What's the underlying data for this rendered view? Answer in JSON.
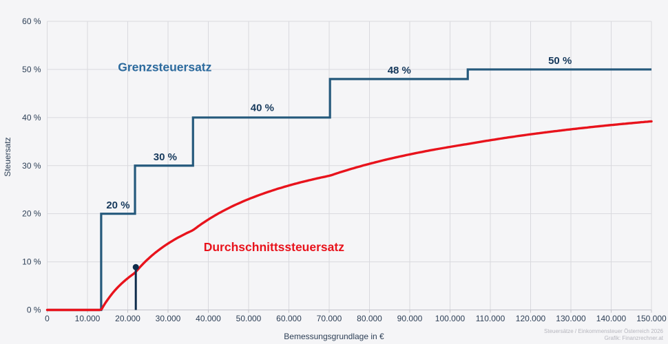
{
  "chart_data": {
    "type": "line",
    "title": "",
    "xlabel": "Bemessungsgrundlage in €",
    "ylabel": "Steuersatz",
    "xlim": [
      0,
      150000
    ],
    "ylim": [
      0,
      60
    ],
    "grid": true,
    "x_ticks": [
      {
        "value": 0,
        "label": "0"
      },
      {
        "value": 10000,
        "label": "10.000"
      },
      {
        "value": 20000,
        "label": "20.000"
      },
      {
        "value": 30000,
        "label": "30.000"
      },
      {
        "value": 40000,
        "label": "40.000"
      },
      {
        "value": 50000,
        "label": "50.000"
      },
      {
        "value": 60000,
        "label": "60.000"
      },
      {
        "value": 70000,
        "label": "70.000"
      },
      {
        "value": 80000,
        "label": "80.000"
      },
      {
        "value": 90000,
        "label": "90.000"
      },
      {
        "value": 100000,
        "label": "100.000"
      },
      {
        "value": 110000,
        "label": "110.000"
      },
      {
        "value": 120000,
        "label": "120.000"
      },
      {
        "value": 130000,
        "label": "130.000"
      },
      {
        "value": 140000,
        "label": "140.000"
      },
      {
        "value": 150000,
        "label": "150.000"
      }
    ],
    "y_ticks": [
      {
        "value": 0,
        "label": "0 %"
      },
      {
        "value": 10,
        "label": "10 %"
      },
      {
        "value": 20,
        "label": "20 %"
      },
      {
        "value": 30,
        "label": "30 %"
      },
      {
        "value": 40,
        "label": "40 %"
      },
      {
        "value": 50,
        "label": "50 %"
      },
      {
        "value": 60,
        "label": "60 %"
      }
    ],
    "series": [
      {
        "name": "Grenzsteuersatz",
        "type": "step",
        "color": "#25597c",
        "brackets": [
          {
            "up_to": 13400,
            "rate": 0
          },
          {
            "up_to": 21800,
            "rate": 20
          },
          {
            "up_to": 36200,
            "rate": 30
          },
          {
            "up_to": 70200,
            "rate": 40
          },
          {
            "up_to": 104400,
            "rate": 48
          },
          {
            "up_to": 150000,
            "rate": 50
          }
        ]
      },
      {
        "name": "Durchschnittssteuersatz",
        "type": "line",
        "color": "#e8131c",
        "derived": "average_rate_from_brackets"
      }
    ],
    "step_labels": [
      {
        "text": "20 %",
        "x": 17600,
        "y": 21.1
      },
      {
        "text": "30 %",
        "x": 29300,
        "y": 31.1
      },
      {
        "text": "40 %",
        "x": 53400,
        "y": 41.3
      },
      {
        "text": "48 %",
        "x": 87400,
        "y": 49.1
      },
      {
        "text": "50 %",
        "x": 127300,
        "y": 51.1
      }
    ],
    "series_labels": [
      {
        "text": "Grenzsteuersatz",
        "x": 29200,
        "y": 49.6,
        "color": "#2d6b9e"
      },
      {
        "text": "Durchschnittssteuersatz",
        "x": 56300,
        "y": 12.2,
        "color": "#e8131c"
      }
    ],
    "marker": {
      "x": 22000,
      "y": 8.9,
      "color": "#0e2c4b"
    },
    "legend_position": "inline-labels"
  },
  "caption": {
    "line1": "Steuersätze / Einkommensteuer Österreich 2026",
    "line2": "Grafik: Finanzrechner.at"
  }
}
